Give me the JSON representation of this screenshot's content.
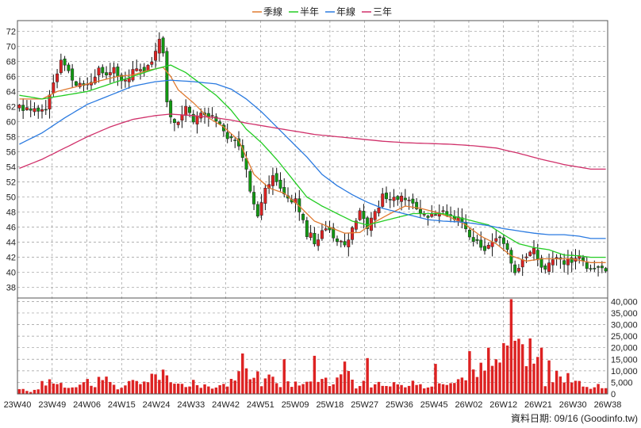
{
  "chart_data": {
    "type": "candlestick",
    "legend": [
      {
        "name": "季線",
        "color": "#e07a30"
      },
      {
        "name": "半年",
        "color": "#22cc22"
      },
      {
        "name": "年線",
        "color": "#2a7ae0"
      },
      {
        "name": "三年",
        "color": "#d0306a"
      }
    ],
    "colors": {
      "up": "#dd2222",
      "down": "#119911",
      "volume": "#dd2222",
      "grid": "#999999"
    },
    "price_axis": {
      "ylim": [
        36.6,
        73.4
      ],
      "ticks": [
        38,
        40,
        42,
        44,
        46,
        48,
        50,
        52,
        54,
        56,
        58,
        60,
        62,
        64,
        66,
        68,
        70,
        72
      ]
    },
    "volume_axis": {
      "ylim": [
        0,
        41500
      ],
      "ticks": [
        "0",
        "5,000",
        "10,000",
        "15,000",
        "20,000",
        "25,000",
        "30,000",
        "35,000",
        "40,000"
      ]
    },
    "x_ticks": [
      "23W40",
      "23W49",
      "24W06",
      "24W15",
      "24W24",
      "24W33",
      "24W42",
      "24W51",
      "25W09",
      "25W18",
      "25W27",
      "25W36",
      "25W45",
      "26W02",
      "26W12",
      "26W21",
      "26W30",
      "26W38"
    ],
    "credit": "資料日期: 09/16  (Goodinfo.tw)",
    "weeks": 156,
    "close_anchors": [
      [
        0,
        62
      ],
      [
        4,
        61.5
      ],
      [
        7,
        62
      ],
      [
        9,
        65
      ],
      [
        11,
        68
      ],
      [
        13,
        66.5
      ],
      [
        15,
        64.5
      ],
      [
        17,
        65
      ],
      [
        19,
        65.5
      ],
      [
        21,
        67
      ],
      [
        23,
        66
      ],
      [
        25,
        67
      ],
      [
        27,
        65.5
      ],
      [
        29,
        66
      ],
      [
        31,
        67
      ],
      [
        33,
        67
      ],
      [
        35,
        68
      ],
      [
        37,
        71
      ],
      [
        38,
        69
      ],
      [
        39,
        63
      ],
      [
        40,
        61
      ],
      [
        42,
        59.5
      ],
      [
        44,
        62
      ],
      [
        46,
        60
      ],
      [
        48,
        61.5
      ],
      [
        50,
        61
      ],
      [
        52,
        60.5
      ],
      [
        55,
        58
      ],
      [
        58,
        57
      ],
      [
        60,
        54
      ],
      [
        61,
        51
      ],
      [
        62,
        49
      ],
      [
        63,
        47.5
      ],
      [
        64,
        49
      ],
      [
        65,
        51
      ],
      [
        67,
        52.5
      ],
      [
        69,
        51
      ],
      [
        71,
        50
      ],
      [
        73,
        49.5
      ],
      [
        75,
        47
      ],
      [
        76,
        45
      ],
      [
        77,
        45.5
      ],
      [
        78,
        44
      ],
      [
        80,
        45.5
      ],
      [
        82,
        46
      ],
      [
        84,
        44
      ],
      [
        86,
        43.5
      ],
      [
        88,
        46
      ],
      [
        90,
        48.5
      ],
      [
        92,
        46
      ],
      [
        94,
        48
      ],
      [
        96,
        50
      ],
      [
        98,
        49.5
      ],
      [
        100,
        50
      ],
      [
        102,
        50
      ],
      [
        104,
        49
      ],
      [
        106,
        48
      ],
      [
        108,
        47.5
      ],
      [
        110,
        48
      ],
      [
        112,
        48
      ],
      [
        114,
        47.5
      ],
      [
        116,
        47
      ],
      [
        118,
        46
      ],
      [
        119,
        45
      ],
      [
        121,
        44
      ],
      [
        123,
        43
      ],
      [
        125,
        44
      ],
      [
        127,
        44.5
      ],
      [
        129,
        43
      ],
      [
        130,
        41
      ],
      [
        131,
        39.5
      ],
      [
        132,
        41
      ],
      [
        134,
        42
      ],
      [
        136,
        43.5
      ],
      [
        137,
        42
      ],
      [
        138,
        40.5
      ],
      [
        140,
        41
      ],
      [
        142,
        42
      ],
      [
        144,
        41.5
      ],
      [
        146,
        41.5
      ],
      [
        148,
        42
      ],
      [
        150,
        40.5
      ],
      [
        151,
        40.5
      ]
    ],
    "volume_anchors": [
      [
        0,
        2000
      ],
      [
        3,
        1500
      ],
      [
        6,
        4000
      ],
      [
        8,
        5500
      ],
      [
        10,
        5000
      ],
      [
        12,
        4000
      ],
      [
        14,
        3000
      ],
      [
        16,
        5000
      ],
      [
        18,
        7000
      ],
      [
        20,
        4500
      ],
      [
        22,
        6500
      ],
      [
        24,
        4000
      ],
      [
        26,
        3500
      ],
      [
        28,
        5000
      ],
      [
        30,
        6000
      ],
      [
        32,
        4000
      ],
      [
        34,
        7000
      ],
      [
        36,
        9000
      ],
      [
        38,
        10000
      ],
      [
        40,
        5000
      ],
      [
        42,
        3500
      ],
      [
        44,
        4000
      ],
      [
        46,
        5000
      ],
      [
        48,
        4500
      ],
      [
        50,
        3000
      ],
      [
        52,
        4000
      ],
      [
        54,
        3000
      ],
      [
        56,
        5500
      ],
      [
        58,
        8000
      ],
      [
        60,
        12000
      ],
      [
        62,
        10000
      ],
      [
        64,
        6000
      ],
      [
        66,
        7500
      ],
      [
        68,
        4000
      ],
      [
        70,
        5000
      ],
      [
        72,
        3000
      ],
      [
        74,
        5000
      ],
      [
        76,
        8000
      ],
      [
        78,
        5000
      ],
      [
        80,
        6000
      ],
      [
        82,
        4000
      ],
      [
        84,
        6000
      ],
      [
        86,
        10000
      ],
      [
        88,
        5000
      ],
      [
        90,
        3500
      ],
      [
        92,
        4500
      ],
      [
        94,
        3000
      ],
      [
        96,
        5000
      ],
      [
        98,
        3500
      ],
      [
        100,
        5000
      ],
      [
        102,
        3000
      ],
      [
        104,
        4000
      ],
      [
        106,
        3500
      ],
      [
        108,
        3000
      ],
      [
        110,
        2500
      ],
      [
        112,
        4000
      ],
      [
        114,
        3500
      ],
      [
        116,
        5000
      ],
      [
        118,
        6500
      ],
      [
        120,
        8000
      ],
      [
        122,
        10000
      ],
      [
        124,
        12000
      ],
      [
        126,
        9000
      ],
      [
        128,
        13000
      ],
      [
        130,
        16000
      ],
      [
        131,
        20000
      ],
      [
        132,
        24000
      ],
      [
        133,
        14000
      ],
      [
        134,
        9000
      ],
      [
        136,
        11000
      ],
      [
        138,
        7000
      ],
      [
        140,
        5000
      ],
      [
        142,
        8000
      ],
      [
        144,
        6000
      ],
      [
        146,
        5000
      ],
      [
        148,
        4000
      ],
      [
        150,
        3500
      ],
      [
        151,
        3000
      ]
    ],
    "volume_spikes": [
      [
        59,
        17500
      ],
      [
        70,
        15000
      ],
      [
        78,
        16500
      ],
      [
        86,
        14000
      ],
      [
        92,
        15500
      ],
      [
        110,
        13000
      ],
      [
        119,
        18500
      ],
      [
        122,
        13500
      ],
      [
        124,
        20000
      ],
      [
        126,
        15000
      ],
      [
        128,
        22000
      ],
      [
        130,
        41000
      ],
      [
        131,
        23000
      ],
      [
        133,
        21500
      ],
      [
        135,
        24000
      ],
      [
        137,
        16000
      ],
      [
        138,
        20000
      ],
      [
        140,
        14500
      ],
      [
        142,
        10000
      ],
      [
        145,
        9000
      ]
    ],
    "ma_anchors": {
      "季線": [
        [
          0,
          63
        ],
        [
          6,
          63
        ],
        [
          10,
          64
        ],
        [
          14,
          64.5
        ],
        [
          18,
          65
        ],
        [
          22,
          65.5
        ],
        [
          26,
          66
        ],
        [
          30,
          66.2
        ],
        [
          34,
          66.8
        ],
        [
          38,
          67.2
        ],
        [
          40,
          66
        ],
        [
          42,
          64.2
        ],
        [
          46,
          62.5
        ],
        [
          50,
          60.5
        ],
        [
          54,
          59.3
        ],
        [
          58,
          57.5
        ],
        [
          62,
          53
        ],
        [
          66,
          51.2
        ],
        [
          70,
          50.5
        ],
        [
          74,
          48.8
        ],
        [
          78,
          46.8
        ],
        [
          82,
          46
        ],
        [
          86,
          45.2
        ],
        [
          90,
          45.3
        ],
        [
          94,
          46.7
        ],
        [
          98,
          47.8
        ],
        [
          102,
          48.8
        ],
        [
          106,
          48.5
        ],
        [
          110,
          48
        ],
        [
          114,
          47.3
        ],
        [
          118,
          46.3
        ],
        [
          122,
          44.8
        ],
        [
          126,
          43.8
        ],
        [
          130,
          42.2
        ],
        [
          134,
          41.5
        ],
        [
          138,
          41.8
        ],
        [
          142,
          41.8
        ],
        [
          146,
          41.8
        ],
        [
          151,
          41.3
        ]
      ],
      "半年": [
        [
          0,
          63.5
        ],
        [
          6,
          63
        ],
        [
          12,
          63.5
        ],
        [
          18,
          64
        ],
        [
          24,
          65
        ],
        [
          30,
          66
        ],
        [
          36,
          67
        ],
        [
          40,
          67.5
        ],
        [
          44,
          66.5
        ],
        [
          48,
          65
        ],
        [
          52,
          63.5
        ],
        [
          56,
          61.5
        ],
        [
          60,
          59
        ],
        [
          64,
          57.2
        ],
        [
          68,
          55
        ],
        [
          72,
          52.5
        ],
        [
          76,
          50
        ],
        [
          80,
          48.8
        ],
        [
          84,
          47.8
        ],
        [
          88,
          46.8
        ],
        [
          92,
          46.3
        ],
        [
          96,
          46.8
        ],
        [
          100,
          47.3
        ],
        [
          104,
          47.8
        ],
        [
          108,
          47.8
        ],
        [
          112,
          47.8
        ],
        [
          116,
          47.3
        ],
        [
          120,
          46.8
        ],
        [
          124,
          46.3
        ],
        [
          128,
          45
        ],
        [
          132,
          43.8
        ],
        [
          136,
          43.3
        ],
        [
          140,
          43
        ],
        [
          144,
          42.3
        ],
        [
          148,
          42.2
        ],
        [
          151,
          42
        ]
      ],
      "年線": [
        [
          0,
          57
        ],
        [
          6,
          58.5
        ],
        [
          12,
          60.5
        ],
        [
          18,
          62.3
        ],
        [
          24,
          63.5
        ],
        [
          30,
          64.7
        ],
        [
          36,
          65.3
        ],
        [
          40,
          65.5
        ],
        [
          46,
          65.3
        ],
        [
          52,
          65
        ],
        [
          56,
          64.3
        ],
        [
          60,
          63
        ],
        [
          64,
          61.3
        ],
        [
          68,
          59.3
        ],
        [
          72,
          57.3
        ],
        [
          76,
          55.3
        ],
        [
          80,
          53
        ],
        [
          84,
          51.5
        ],
        [
          88,
          50.3
        ],
        [
          92,
          49.3
        ],
        [
          96,
          48.5
        ],
        [
          100,
          48
        ],
        [
          104,
          47.5
        ],
        [
          108,
          47
        ],
        [
          112,
          46.8
        ],
        [
          116,
          46.7
        ],
        [
          120,
          46.5
        ],
        [
          124,
          46.2
        ],
        [
          128,
          45.8
        ],
        [
          132,
          45.5
        ],
        [
          136,
          45.2
        ],
        [
          140,
          45
        ],
        [
          144,
          45
        ],
        [
          148,
          44.8
        ],
        [
          151,
          44.5
        ]
      ],
      "三年": [
        [
          0,
          53.8
        ],
        [
          6,
          55
        ],
        [
          12,
          56.5
        ],
        [
          18,
          58
        ],
        [
          24,
          59.3
        ],
        [
          30,
          60.3
        ],
        [
          36,
          60.8
        ],
        [
          40,
          61
        ],
        [
          46,
          60.8
        ],
        [
          52,
          60.5
        ],
        [
          56,
          60.2
        ],
        [
          60,
          59.8
        ],
        [
          66,
          59.3
        ],
        [
          72,
          58.8
        ],
        [
          78,
          58.3
        ],
        [
          84,
          58
        ],
        [
          90,
          57.7
        ],
        [
          96,
          57.4
        ],
        [
          102,
          57.2
        ],
        [
          108,
          57.1
        ],
        [
          114,
          57
        ],
        [
          120,
          56.8
        ],
        [
          126,
          56.5
        ],
        [
          132,
          55.8
        ],
        [
          138,
          55
        ],
        [
          144,
          54.3
        ],
        [
          151,
          53.7
        ]
      ]
    }
  }
}
